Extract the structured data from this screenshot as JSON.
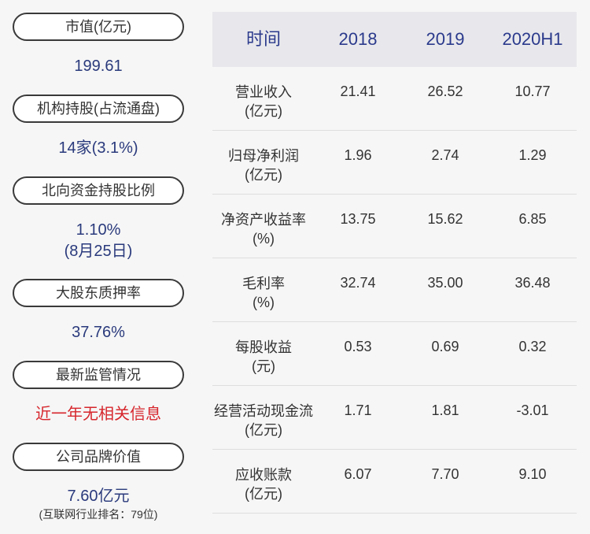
{
  "left": [
    {
      "label": "市值(亿元)",
      "lines": [
        "199.61"
      ]
    },
    {
      "label": "机构持股(占流通盘)",
      "lines": [
        "14家(3.1%)"
      ]
    },
    {
      "label": "北向资金持股比例",
      "lines": [
        "1.10%",
        "(8月25日)"
      ]
    },
    {
      "label": "大股东质押率",
      "lines": [
        "37.76%"
      ]
    },
    {
      "label": "最新监管情况",
      "lines": [
        "近一年无相关信息"
      ],
      "alert": true
    },
    {
      "label": "公司品牌价值",
      "lines": [
        "7.60亿元"
      ],
      "note": "(互联网行业排名：79位)"
    }
  ],
  "table": {
    "header": [
      "时间",
      "2018",
      "2019",
      "2020H1"
    ],
    "rows": [
      {
        "name": [
          "营业收入",
          "(亿元)"
        ],
        "cells": [
          "21.41",
          "26.52",
          "10.77"
        ]
      },
      {
        "name": [
          "归母净利润",
          "(亿元)"
        ],
        "cells": [
          "1.96",
          "2.74",
          "1.29"
        ]
      },
      {
        "name": [
          "净资产收益率",
          "(%)"
        ],
        "cells": [
          "13.75",
          "15.62",
          "6.85"
        ]
      },
      {
        "name": [
          "毛利率",
          "(%)"
        ],
        "cells": [
          "32.74",
          "35.00",
          "36.48"
        ]
      },
      {
        "name": [
          "每股收益",
          "(元)"
        ],
        "cells": [
          "0.53",
          "0.69",
          "0.32"
        ]
      },
      {
        "name": [
          "经营活动现金流",
          "(亿元)"
        ],
        "cells": [
          "1.71",
          "1.81",
          "-3.01"
        ]
      },
      {
        "name": [
          "应收账款",
          "(亿元)"
        ],
        "cells": [
          "6.07",
          "7.70",
          "9.10"
        ]
      }
    ]
  }
}
